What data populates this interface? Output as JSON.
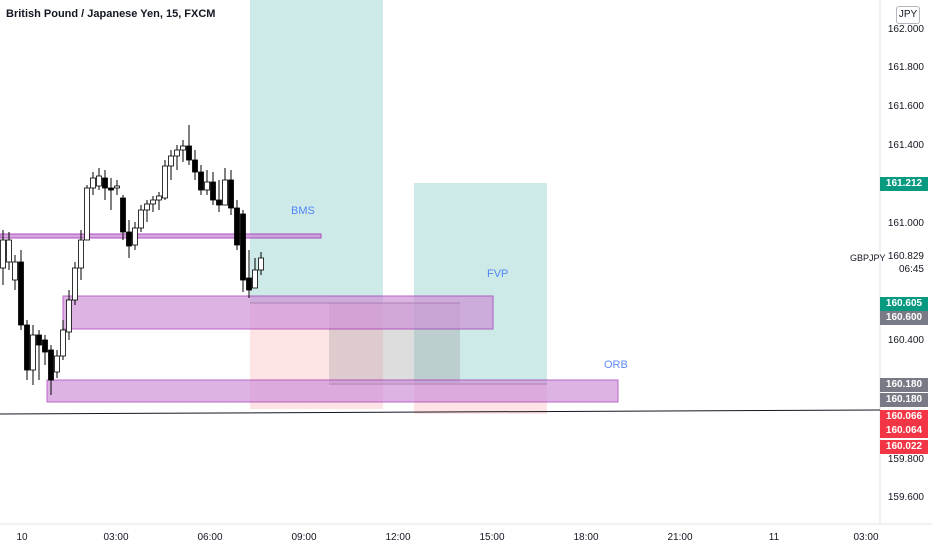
{
  "header": {
    "title": "British Pound / Japanese Yen, 15, FXCM",
    "currency": "JPY"
  },
  "y_axis": {
    "ticks": [
      "162.000",
      "161.800",
      "161.600",
      "161.400",
      "161.000",
      "160.400",
      "159.800",
      "159.600"
    ]
  },
  "x_axis": {
    "ticks": [
      "10",
      "03:00",
      "06:00",
      "09:00",
      "12:00",
      "15:00",
      "18:00",
      "21:00",
      "11",
      "03:00"
    ]
  },
  "symbol_label": {
    "name": "GBPJPY",
    "price": "160.829",
    "countdown": "06:45"
  },
  "price_tags": [
    {
      "label": "161.212",
      "color": "#089981"
    },
    {
      "label": "160.605",
      "color": "#089981"
    },
    {
      "label": "160.600",
      "color": "#787b86"
    },
    {
      "label": "160.180",
      "color": "#787b86"
    },
    {
      "label": "160.180",
      "color": "#787b86"
    },
    {
      "label": "160.066",
      "color": "#f23645"
    },
    {
      "label": "160.064",
      "color": "#f23645"
    },
    {
      "label": "160.022",
      "color": "#f23645"
    }
  ],
  "annotations": {
    "bms": "BMS",
    "fvp": "FVP",
    "orb": "ORB"
  },
  "colors": {
    "up": "#ffffff",
    "down": "#000000",
    "zone_purple": "#ce93d8",
    "long_green": "#b2dfdb",
    "short_red": "#ffcdd2"
  }
}
